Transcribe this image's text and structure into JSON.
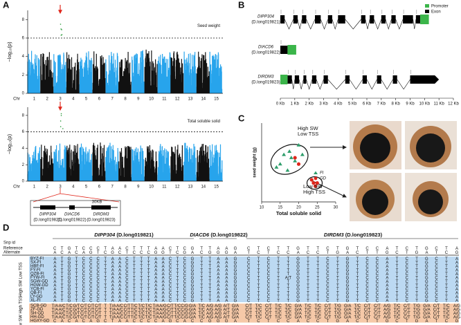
{
  "panels": {
    "A": {
      "letter": "A",
      "ylabel": "−log₁₀(p)",
      "chr_label": "Chr",
      "chromosomes": [
        "1",
        "2",
        "3",
        "4",
        "5",
        "6",
        "7",
        "8",
        "9",
        "10",
        "11",
        "12",
        "13",
        "14",
        "15"
      ],
      "plots": [
        {
          "title": "Seed weight",
          "ylim": [
            0,
            9
          ],
          "yticks": [
            0,
            2,
            4,
            6,
            8
          ],
          "threshold": 6
        },
        {
          "title": "Total soluble solid",
          "ylim": [
            0,
            9
          ],
          "yticks": [
            0,
            2,
            4,
            6,
            8
          ],
          "threshold": 6
        }
      ],
      "region": "30KB",
      "genes": [
        {
          "name": "DIPP304",
          "id": "(D.long019821)"
        },
        {
          "name": "DIACD6",
          "id": "(D.long019822)"
        },
        {
          "name": "DIRDM3",
          "id": "(D.long019823)"
        }
      ]
    },
    "B": {
      "letter": "B",
      "legend": [
        {
          "name": "Promoter",
          "color": "#3bb54a"
        },
        {
          "name": "Exon",
          "color": "#000000"
        }
      ],
      "xlim": [
        0,
        12
      ],
      "xticks": [
        {
          "value": 0,
          "label": "0 Kb"
        },
        {
          "value": 1,
          "label": "1 Kb"
        },
        {
          "value": 2,
          "label": "2 Kb"
        },
        {
          "value": 3,
          "label": "3 Kb"
        },
        {
          "value": 4,
          "label": "4 Kb"
        },
        {
          "value": 5,
          "label": "5 Kb"
        },
        {
          "value": 6,
          "label": "6 Kb"
        },
        {
          "value": 7,
          "label": "7 Kb"
        },
        {
          "value": 8,
          "label": "8 Kb"
        },
        {
          "value": 9,
          "label": "9 Kb"
        },
        {
          "value": 10,
          "label": "10 Kb"
        },
        {
          "value": 11,
          "label": "11 Kb"
        },
        {
          "value": 12,
          "label": "12 Kb"
        }
      ],
      "genes": [
        {
          "name": "DIPP304",
          "id": "(D.long019821)",
          "exons": [
            [
              0,
              0.3
            ],
            [
              0.9,
              1.2
            ],
            [
              1.5,
              1.8
            ],
            [
              2.4,
              2.8
            ],
            [
              3.3,
              3.6
            ],
            [
              4.0,
              4.5
            ],
            [
              5.6,
              5.9
            ],
            [
              6.2,
              6.5
            ],
            [
              7.0,
              7.3
            ],
            [
              7.7,
              8.0
            ],
            [
              8.5,
              9.2
            ],
            [
              9.4,
              9.7
            ]
          ],
          "promoter": [
            9.7,
            10.3
          ]
        },
        {
          "name": "DIACD6",
          "id": "(D.long019822)",
          "exons": [
            [
              0,
              0.5
            ]
          ],
          "promoter": [
            0.5,
            1.1
          ]
        },
        {
          "name": "DIRDM3",
          "id": "(D.long019823)",
          "exons": [
            [
              0.5,
              0.8
            ],
            [
              1.0,
              1.3
            ],
            [
              1.6,
              1.8
            ],
            [
              2.2,
              2.5
            ],
            [
              3.0,
              3.3
            ],
            [
              4.5,
              4.8
            ],
            [
              5.7,
              6.0
            ],
            [
              6.7,
              7.0
            ],
            [
              7.8,
              8.1
            ],
            [
              9.0,
              11.0
            ]
          ],
          "promoter": [
            0,
            0.5
          ]
        }
      ]
    },
    "C": {
      "letter": "C",
      "type": "scatter",
      "xlabel": "Total  soluble solid",
      "ylabel": "seed weight (g)",
      "xlim": [
        10,
        30
      ],
      "ylim": [
        1,
        3.5
      ],
      "xticks": [
        10,
        15,
        20,
        25,
        30
      ],
      "annotations": [
        "High SW",
        "Low TSS",
        "Low SW",
        "High TSS"
      ],
      "series": [
        {
          "name": "FI",
          "color": "#2e9e6b",
          "x": [
            14,
            15,
            16,
            17,
            17.5,
            18,
            19,
            20,
            21
          ],
          "y": [
            2.1,
            2.2,
            2.5,
            2.0,
            2.6,
            2.4,
            2.3,
            2.8,
            2.5
          ]
        },
        {
          "name": "GD",
          "color": "#e0261b",
          "x": [
            19,
            20,
            23.5,
            24,
            24.5,
            25
          ],
          "y": [
            2.4,
            2.2,
            1.7,
            1.6,
            1.5,
            1.6
          ]
        }
      ]
    },
    "D": {
      "letter": "D",
      "snp_label": "Snp id",
      "ref_label": "Reference",
      "alt_label": "Alternate",
      "genes": [
        {
          "name": "DIPP304",
          "id": "(D.long019821)"
        },
        {
          "name": "DIACD6",
          "id": "(D.long019822)"
        },
        {
          "name": "DIRDM3",
          "id": "(D.long019823)"
        }
      ],
      "reference": [
        "C T G T C C C T A A C T T T A A C T C G",
        "T T A A G",
        "C T C T T G T T C T G T C C A T C T G C T A"
      ],
      "alternate": [
        "A C A C A G T C G C T C C C G G T C G A",
        "C G G G A",
        "T C T C C A C C T G A C T T G C T G A T C G"
      ],
      "groups": [
        {
          "label": "High SW Low TSS",
          "rows": [
            {
              "sample": "BYZ-FI",
              "seq": [
                "A T G T C C C T A A C T T T A A C T C G",
                "T T A A G",
                "C T C T T G T T C T G T C C A T C T G C T A"
              ]
            },
            {
              "sample": "SX-FI",
              "seq": [
                "A T G T C C C T A A C T T T A A C T C G",
                "T T A A G",
                "C T C T T G T T C T G T C C A T C T G C T A"
              ]
            },
            {
              "sample": "HBF-FI",
              "seq": [
                "A T G T C C C T A A C T T T A A C T C G",
                "T T A A G",
                "C T C T T G T T C T G T C C A T C T G C T A"
              ]
            },
            {
              "sample": "FY-FI",
              "seq": [
                "A T G T C C C T A A C T T T A A C T C G",
                "T T A A G",
                "C T C T T G T T C T G T C C A T C T G C T A"
              ]
            },
            {
              "sample": "QZB-FI",
              "seq": [
                "A T G T C C C T A A C T T T A A C T C G",
                "T T A A G",
                "C T C T T G T T C T G T C C A T C T G C T A"
              ]
            },
            {
              "sample": "FYW-FI",
              "seq": [
                "A T G T C C C T A A C T T T A A C T C G",
                "T T A A G",
                "C T C T A/T G T T C T G T C C A T C T G C T A"
              ]
            },
            {
              "sample": "SGW-GD",
              "seq": [
                "A T G T C C C T A A C T T T A A C T C G",
                "T T A A G",
                "C T C T T G T T C T G T C C A T C T G C T A"
              ]
            },
            {
              "sample": "HGW-GD",
              "seq": [
                "A T G T C C C T A A C T T T A A C T C G",
                "T T A A G",
                "C T C T T G T T C T G T C C A T C T G C T A"
              ]
            },
            {
              "sample": "YCB-FI",
              "seq": [
                "A T G T C C C T A A C T T T A A C T C G",
                "T T A A G",
                "C T C T T G T T C T G T C C A T C T G C T A"
              ]
            },
            {
              "sample": "QB-FI",
              "seq": [
                "A T G T C C C T A A C T T T A A C T C G",
                "T T A A G",
                "C T C T T G T T C T G T C C A T C T G C T A"
              ]
            },
            {
              "sample": "LY-GD",
              "seq": [
                "A T G T C C C T A A C T T T A A C T C G",
                "T T A A G",
                "C T C T T G T T C T G T C C A T C T G C T A"
              ]
            },
            {
              "sample": "XL-FI",
              "seq": [
                "A T G T C C C T A A C T T T A A C T C G",
                "T T A A G",
                "C T C T T G T T C T G T C C A T C T G C T A"
              ]
            }
          ]
        },
        {
          "label": "Low SW High TSS",
          "rows": [
            {
              "sample": "SCB-GD",
              "seq": [
                "T/A A/C T/C G/T C/T C/T C/T T T/A A/C C/T T/C T/C T/C T/A A/G C/T T/C C/G G/A",
                "T/C A/G A/G A/T G/A",
                "C/T T/C C/T T/C T/C G/A T/C T/C C/T T/G G/A T/C C/T C/T A/G T/C C/T T/G G/A C/T T/C A/G"
              ]
            },
            {
              "sample": "ZF-GD",
              "seq": [
                "T/A A/C T/C G/T C/T C/T C/T T T/A A/C C/T T/C T/C T/C T/A A/G C/T T/C C/G G/A",
                "T/C A/G A/G A/T G/A",
                "C/T T/C C/T T/C T/C G/A T/C T/C C/T T/G G/A T/C C/T C/T A/G T/C C/T T/G G/A C/T T/C A/G"
              ]
            },
            {
              "sample": "SH-GD",
              "seq": [
                "T/A A/C T/C G/T C/T C/T C/T T T/A A/C C/T T/C T/C T/C T/A A/G C/T T/C C/G G/A",
                "T/C A/G A/G A/T G/A",
                "C/T T/C C/T T/C T/C G/A T/C T/C C/T T/G G/A T/C C/T C/T A/G T/C C/T T/G G/A C/T T/C A/G"
              ]
            },
            {
              "sample": "HH-GD",
              "seq": [
                "T/A A/C T/C G/T C/T C/T C/T T T/A A/C C/T T/C T/C T/C T/A A/G C/T T/C C/G G/A",
                "T/C A/G A/G A/T G/A",
                "C/T T/C C/T T/C T/C G/A T/C T/C C/T T/G G/A T/C C/T C/T A/G T/C C/T T/G G/A C/T T/C A/G"
              ]
            },
            {
              "sample": "HGXY-GD",
              "seq": [
                "C A C A C A G C T A A C C C C A G C A C",
                "C G G G A",
                "T C T C C A C C T G A C T T G C T G A T C G"
              ]
            }
          ]
        }
      ]
    }
  }
}
